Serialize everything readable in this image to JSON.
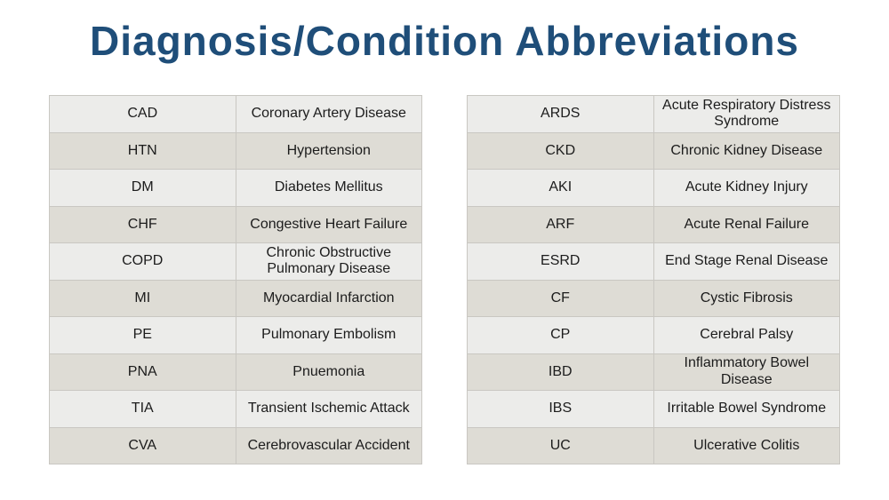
{
  "title": {
    "text": "Diagnosis/Condition Abbreviations"
  },
  "colors": {
    "title_color": "#1F4E79",
    "row_light": "#ECECEA",
    "row_dark": "#DEDCD5",
    "border": "#C9C7C2",
    "text": "#1C1C1C",
    "background": "#FFFFFF"
  },
  "tables": {
    "left": {
      "rows": [
        {
          "abbr": "CAD",
          "meaning": "Coronary Artery Disease"
        },
        {
          "abbr": "HTN",
          "meaning": "Hypertension"
        },
        {
          "abbr": "DM",
          "meaning": "Diabetes Mellitus"
        },
        {
          "abbr": "CHF",
          "meaning": "Congestive Heart Failure"
        },
        {
          "abbr": "COPD",
          "meaning": "Chronic Obstructive Pulmonary Disease"
        },
        {
          "abbr": "MI",
          "meaning": "Myocardial Infarction"
        },
        {
          "abbr": "PE",
          "meaning": "Pulmonary Embolism"
        },
        {
          "abbr": "PNA",
          "meaning": "Pnuemonia"
        },
        {
          "abbr": "TIA",
          "meaning": "Transient Ischemic Attack"
        },
        {
          "abbr": "CVA",
          "meaning": "Cerebrovascular Accident"
        }
      ]
    },
    "right": {
      "rows": [
        {
          "abbr": "ARDS",
          "meaning": "Acute Respiratory Distress Syndrome"
        },
        {
          "abbr": "CKD",
          "meaning": "Chronic Kidney Disease"
        },
        {
          "abbr": "AKI",
          "meaning": "Acute Kidney Injury"
        },
        {
          "abbr": "ARF",
          "meaning": "Acute Renal Failure"
        },
        {
          "abbr": "ESRD",
          "meaning": "End Stage Renal Disease"
        },
        {
          "abbr": "CF",
          "meaning": "Cystic Fibrosis"
        },
        {
          "abbr": "CP",
          "meaning": "Cerebral Palsy"
        },
        {
          "abbr": "IBD",
          "meaning": "Inflammatory Bowel Disease"
        },
        {
          "abbr": "IBS",
          "meaning": "Irritable Bowel Syndrome"
        },
        {
          "abbr": "UC",
          "meaning": "Ulcerative Colitis"
        }
      ]
    }
  }
}
